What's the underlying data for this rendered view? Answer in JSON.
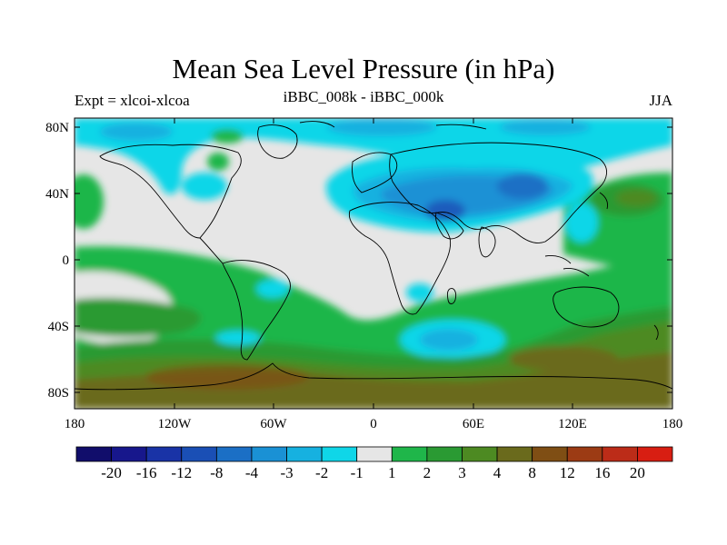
{
  "header": {
    "title": "Mean Sea Level Pressure (in hPa)",
    "left_label": "Expt = xlcoi-xlcoa",
    "center_label": "iBBC_008k - iBBC_000k",
    "right_label": "JJA"
  },
  "axes": {
    "lat_ticks": [
      "80N",
      "40N",
      "0",
      "40S",
      "80S"
    ],
    "lon_ticks": [
      "180",
      "120W",
      "60W",
      "0",
      "60E",
      "120E",
      "180"
    ]
  },
  "colorbar": {
    "labels": [
      "-20",
      "-16",
      "-12",
      "-8",
      "-4",
      "-3",
      "-2",
      "-1",
      "1",
      "2",
      "3",
      "4",
      "8",
      "12",
      "16",
      "20"
    ],
    "colors": [
      "#110d6b",
      "#17178c",
      "#1933a6",
      "#1a4fb5",
      "#1b6fc5",
      "#1a91d5",
      "#16b1e0",
      "#0fd6e8",
      "#e6e6e6",
      "#1fb64a",
      "#2a9a33",
      "#4d8a22",
      "#6a6a1c",
      "#7f4e14",
      "#9c3b14",
      "#bc2c18",
      "#d81e12"
    ]
  },
  "chart_data": {
    "type": "heatmap",
    "title": "Mean Sea Level Pressure (in hPa)",
    "subtitle": "iBBC_008k - iBBC_000k",
    "experiment": "Expt = xlcoi-xlcoa",
    "season": "JJA",
    "variable": "Mean Sea Level Pressure difference",
    "units": "hPa",
    "x_range": [
      -180,
      180
    ],
    "y_range": [
      -90,
      90
    ],
    "contour_levels": [
      -20,
      -16,
      -12,
      -8,
      -4,
      -3,
      -2,
      -1,
      1,
      2,
      3,
      4,
      8,
      12,
      16,
      20
    ],
    "regions": [
      {
        "name": "Arctic",
        "approx_range": "-1 to -2"
      },
      {
        "name": "Eurasia / Mediterranean to Central Asia",
        "approx_range": "-2 to -4"
      },
      {
        "name": "South Indian Ocean",
        "approx_range": "-1 to -2"
      },
      {
        "name": "Southern Ocean",
        "approx_range": "3 to 8"
      },
      {
        "name": "Tropical Pacific",
        "approx_range": "1 to 2"
      },
      {
        "name": "North Pacific (east of Japan)",
        "approx_range": "2 to 4"
      }
    ]
  }
}
